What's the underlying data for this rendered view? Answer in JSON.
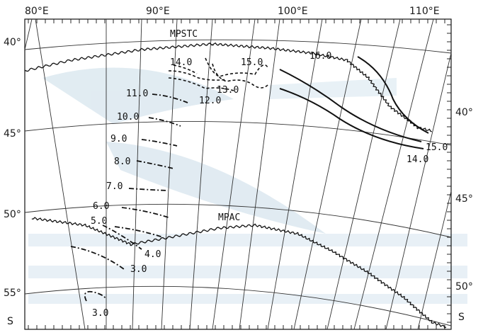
{
  "map": {
    "longitude_labels": [
      "80°E",
      "90°E",
      "100°E",
      "110°E"
    ],
    "left_latitude_labels": [
      "40°",
      "45°",
      "50°",
      "55°",
      "S"
    ],
    "right_latitude_labels": [
      "40°",
      "45°",
      "50°",
      "S"
    ],
    "fronts": [
      {
        "name": "MPSTC"
      },
      {
        "name": "MPAC"
      }
    ],
    "isotherm_labels": [
      "14.0",
      "15.0",
      "13.0",
      "12.0",
      "11.0",
      "10.0",
      "9.0",
      "8.0",
      "7.0",
      "6.0",
      "5.0",
      "4.0",
      "3.0",
      "16.0",
      "15.0",
      "14.0",
      "3.0"
    ],
    "colors": {
      "ink": "#111111",
      "watermark": "#c9dce8",
      "graticule": "#333333"
    }
  }
}
